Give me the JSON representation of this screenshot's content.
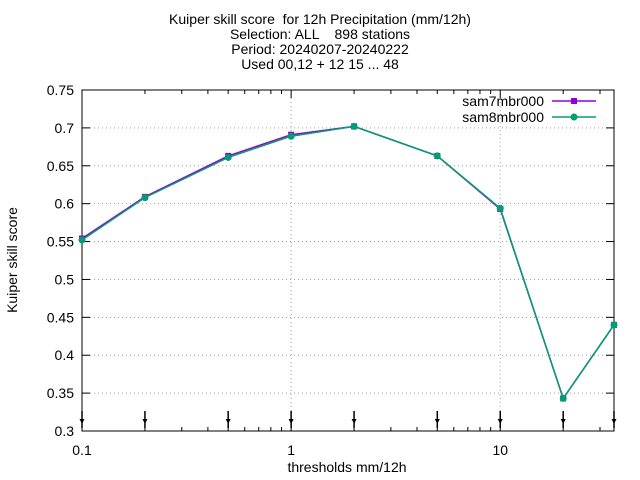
{
  "chart_data": {
    "type": "line",
    "title_lines": [
      "Kuiper skill score  for 12h Precipitation (mm/12h)",
      "Selection: ALL    898 stations",
      "Period: 20240207-20240222",
      "Used 00,12 + 12 15 ... 48"
    ],
    "xlabel": "thresholds mm/12h",
    "ylabel": "Kuiper skill score",
    "x_scale": "log",
    "xlim": [
      0.1,
      35
    ],
    "ylim": [
      0.3,
      0.75
    ],
    "x_ticks": [
      0.1,
      1,
      10
    ],
    "x_tick_labels": [
      "0.1",
      "1",
      "10"
    ],
    "y_ticks": [
      0.3,
      0.35,
      0.4,
      0.45,
      0.5,
      0.55,
      0.6,
      0.65,
      0.7,
      0.75
    ],
    "y_tick_labels": [
      "0.3",
      "0.35",
      "0.4",
      "0.45",
      "0.5",
      "0.55",
      "0.6",
      "0.65",
      "0.7",
      "0.75"
    ],
    "grid": true,
    "legend_position": "top-right",
    "threshold_markers": [
      0.1,
      0.2,
      0.5,
      1,
      2,
      5,
      10,
      20,
      35
    ],
    "x": [
      0.1,
      0.2,
      0.5,
      1,
      2,
      5,
      10,
      20,
      35
    ],
    "series": [
      {
        "name": "sam7mbr000",
        "color": "#9400d3",
        "marker": "square",
        "values": [
          0.554,
          0.609,
          0.663,
          0.691,
          0.702,
          0.663,
          0.593,
          0.343,
          0.44
        ]
      },
      {
        "name": "sam8mbr000",
        "color": "#009e73",
        "marker": "circle",
        "values": [
          0.552,
          0.608,
          0.661,
          0.689,
          0.702,
          0.663,
          0.594,
          0.343,
          0.44
        ]
      }
    ]
  }
}
